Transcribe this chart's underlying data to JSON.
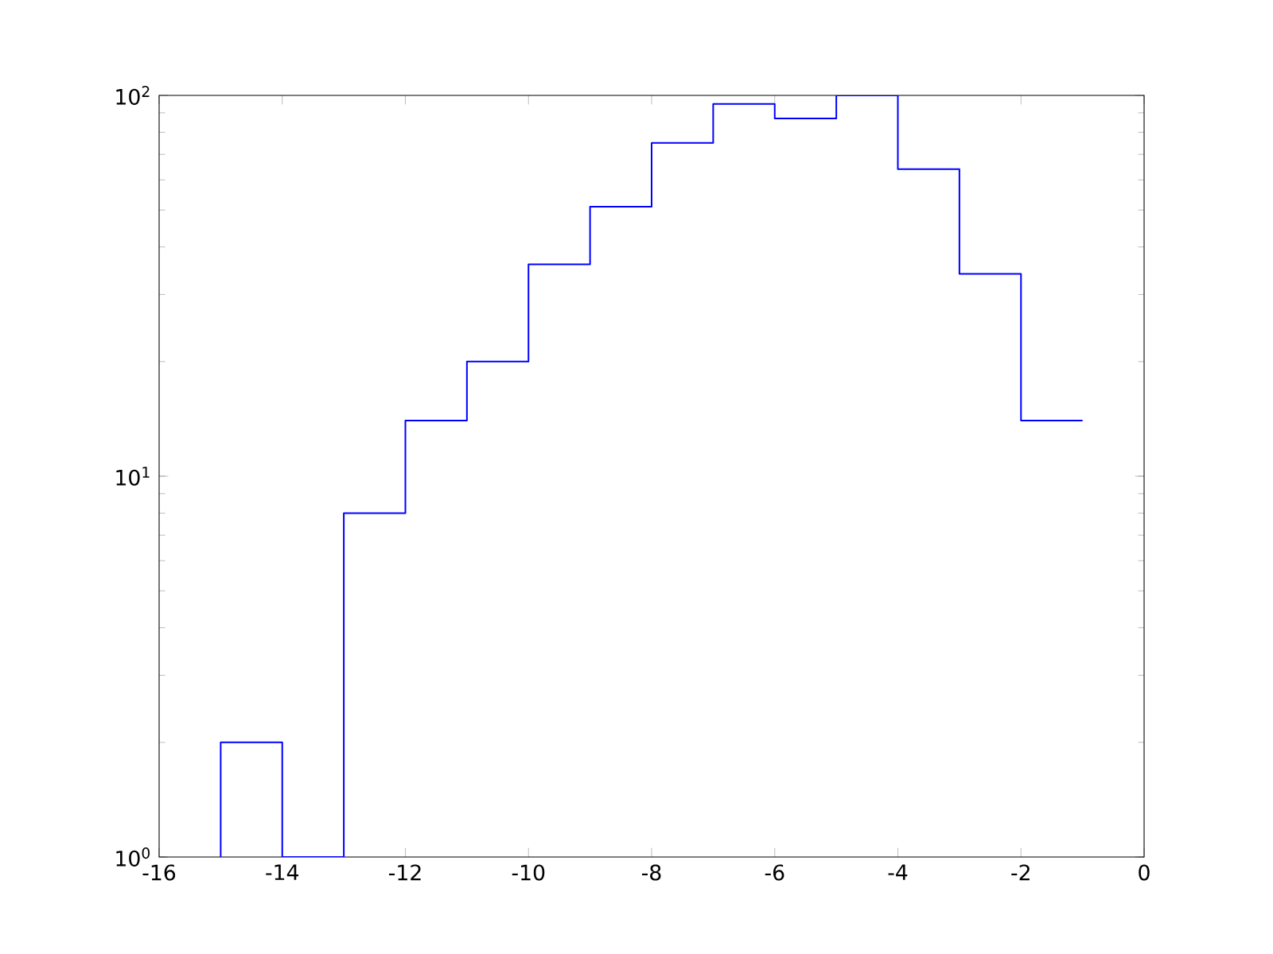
{
  "chart_data": {
    "type": "histogram",
    "color": "#0000ff",
    "bins": [
      -15,
      -14,
      -13,
      -12,
      -11,
      -10,
      -9,
      -8,
      -7,
      -6,
      -5,
      -4,
      -3,
      -2,
      -1
    ],
    "values": [
      2,
      1,
      8,
      14,
      20,
      36,
      51,
      75,
      95,
      87,
      100,
      64,
      34,
      14
    ],
    "xlim": [
      -16,
      0
    ],
    "xticks": [
      -16,
      -14,
      -12,
      -10,
      -8,
      -6,
      -4,
      -2,
      0
    ],
    "ylim": [
      1,
      100
    ],
    "yticks": [
      {
        "value": 1,
        "label": "10$^{0}$"
      },
      {
        "value": 10,
        "label": "10$^{1}$"
      },
      {
        "value": 100,
        "label": "10$^{2}$"
      }
    ],
    "log": "y",
    "grid": false
  }
}
